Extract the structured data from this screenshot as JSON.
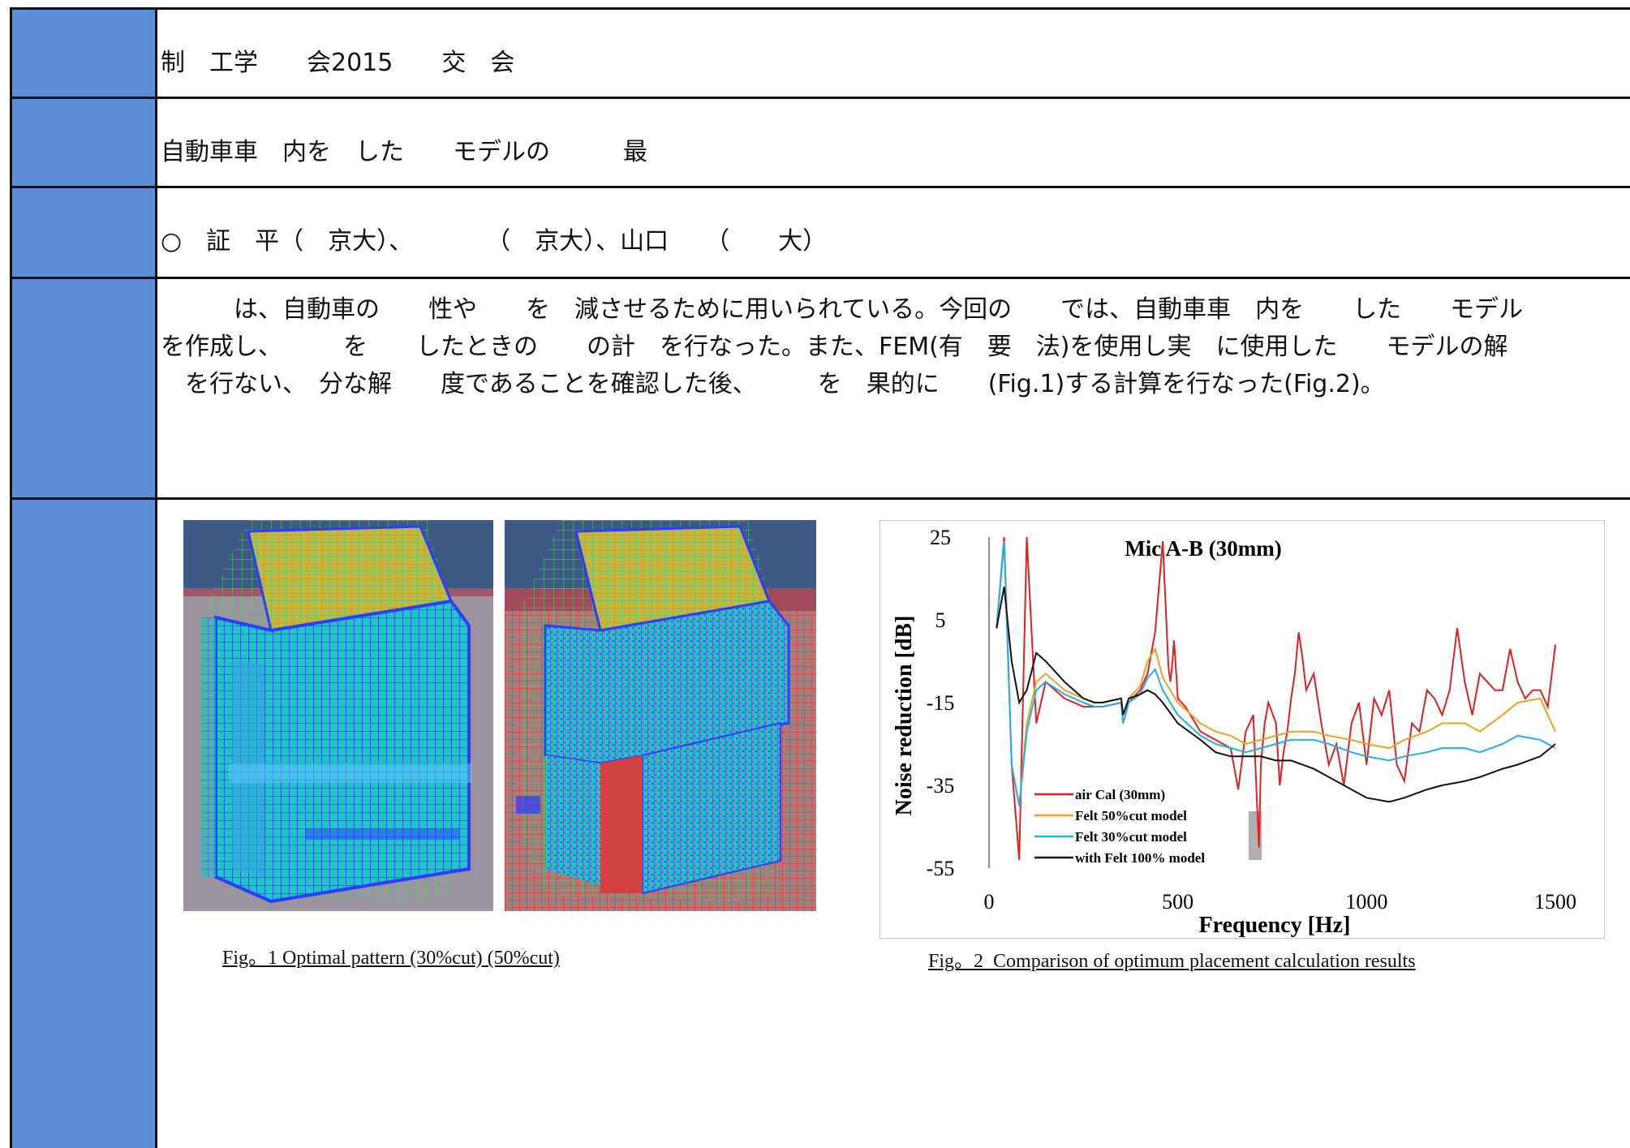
{
  "rows": {
    "conference": "制　工学　　会2015　　交　会",
    "title": "自動車車　内を　した　　モデルの　　　最",
    "authors": "○　証　平（　京大）、　　　　（　京大）、山口　　（　　大）",
    "abstract_lines": [
      "　　　は、自動車の　　性や　　を　減させるために用いられている。今回の　　では、自動車車　内を　　した　　モデル",
      "を作成し、　　　を　　したときの　　の計　を行なった。また、FEM(有　要　法)を使用し実　に使用した　　モデルの解",
      "　を行ない、　分な解　　度であることを確認した後、　　　を　果的に　　(Fig.1)する計算を行なった(Fig.2)。"
    ]
  },
  "fig1": {
    "caption": "Fig。1 Optimal pattern (30%cut) (50%cut)",
    "colors": {
      "sky": "#3d5a86",
      "floor": "#9a94a0",
      "mesh_blue": "#3a3cff",
      "cyan": "#19c9c9",
      "top": "#c8b43c",
      "red": "#ff2020"
    }
  },
  "fig2": {
    "caption": "Fig。2  Comparison of optimum placement calculation results"
  },
  "chart_data": {
    "type": "line",
    "title": "Mic A-B (30mm)",
    "xlabel": "Frequency [Hz]",
    "ylabel": "Noise reduction [dB]",
    "xlim": [
      0,
      1500
    ],
    "ylim": [
      -55,
      25
    ],
    "xticks": [
      0,
      500,
      1000,
      1500
    ],
    "yticks": [
      25,
      5,
      -15,
      -35,
      -55
    ],
    "grid": false,
    "legend_position": "bottom-left",
    "series": [
      {
        "name": "air Cal (30mm)",
        "color": "#e02020",
        "x": [
          20,
          40,
          60,
          80,
          100,
          125,
          150,
          200,
          250,
          280,
          300,
          350,
          355,
          370,
          400,
          420,
          440,
          460,
          475,
          480,
          485,
          490,
          500,
          520,
          560,
          600,
          640,
          660,
          680,
          700,
          710,
          715,
          720,
          730,
          740,
          760,
          770,
          780,
          790,
          800,
          810,
          820,
          830,
          840,
          860,
          880,
          900,
          920,
          940,
          960,
          980,
          1000,
          1020,
          1040,
          1060,
          1080,
          1100,
          1120,
          1140,
          1160,
          1180,
          1200,
          1220,
          1240,
          1260,
          1280,
          1300,
          1320,
          1340,
          1360,
          1380,
          1400,
          1420,
          1440,
          1460,
          1480,
          1500
        ],
        "y": [
          3,
          25,
          -30,
          -53,
          25,
          -20,
          -10,
          -14,
          -16,
          -16,
          -16,
          -15,
          -20,
          -15,
          -12,
          -8,
          2,
          24,
          -6,
          -10,
          -6,
          0,
          -14,
          -16,
          -22,
          -24,
          -26,
          -36,
          -22,
          -18,
          -40,
          -50,
          -30,
          -20,
          -15,
          -20,
          -35,
          -27,
          -22,
          -14,
          -8,
          2,
          -4,
          -12,
          -8,
          -20,
          -30,
          -25,
          -35,
          -20,
          -15,
          -30,
          -14,
          -18,
          -12,
          -30,
          -34,
          -20,
          -22,
          -12,
          -14,
          -18,
          -12,
          3,
          -10,
          -18,
          -8,
          -10,
          -12,
          -12,
          -2,
          -10,
          -14,
          -12,
          -12,
          -16,
          -1
        ]
      },
      {
        "name": "Felt 50%cut model",
        "color": "#f0a020",
        "x": [
          20,
          40,
          60,
          80,
          100,
          125,
          150,
          200,
          250,
          280,
          300,
          350,
          355,
          370,
          400,
          420,
          440,
          460,
          500,
          560,
          600,
          640,
          680,
          720,
          760,
          800,
          860,
          900,
          960,
          1000,
          1060,
          1100,
          1160,
          1200,
          1260,
          1300,
          1360,
          1400,
          1460,
          1500
        ],
        "y": [
          3,
          24,
          -30,
          -40,
          -20,
          -10,
          -8,
          -12,
          -14,
          -15,
          -15,
          -14,
          -18,
          -14,
          -11,
          -5,
          -2,
          -9,
          -15,
          -20,
          -22,
          -23,
          -25,
          -24,
          -23,
          -22,
          -22,
          -23,
          -24,
          -25,
          -26,
          -24,
          -22,
          -20,
          -20,
          -22,
          -18,
          -15,
          -14,
          -22
        ]
      },
      {
        "name": "Felt 30%cut model",
        "color": "#20b0e8",
        "x": [
          20,
          40,
          60,
          80,
          100,
          125,
          150,
          200,
          250,
          280,
          300,
          350,
          355,
          370,
          400,
          420,
          440,
          460,
          500,
          560,
          600,
          640,
          680,
          720,
          760,
          800,
          860,
          900,
          960,
          1000,
          1060,
          1100,
          1160,
          1200,
          1260,
          1300,
          1360,
          1400,
          1460,
          1500
        ],
        "y": [
          3,
          24,
          -30,
          -40,
          -22,
          -12,
          -10,
          -13,
          -15,
          -16,
          -16,
          -15,
          -20,
          -15,
          -13,
          -9,
          -7,
          -12,
          -18,
          -23,
          -25,
          -26,
          -27,
          -26,
          -25,
          -24,
          -24,
          -25,
          -27,
          -28,
          -29,
          -28,
          -27,
          -26,
          -26,
          -27,
          -25,
          -23,
          -24,
          -26
        ]
      },
      {
        "name": "with Felt 100% model",
        "color": "#111111",
        "x": [
          20,
          40,
          60,
          80,
          100,
          125,
          150,
          200,
          250,
          280,
          300,
          350,
          355,
          370,
          400,
          420,
          440,
          460,
          500,
          560,
          600,
          640,
          680,
          720,
          760,
          800,
          860,
          900,
          960,
          1000,
          1060,
          1100,
          1160,
          1200,
          1260,
          1300,
          1360,
          1400,
          1460,
          1500
        ],
        "y": [
          3,
          13,
          -5,
          -15,
          -12,
          -3,
          -5,
          -10,
          -14,
          -15,
          -15,
          -14,
          -18,
          -14,
          -13,
          -12,
          -13,
          -15,
          -20,
          -24,
          -27,
          -28,
          -28,
          -28,
          -29,
          -29,
          -31,
          -33,
          -36,
          -38,
          -39,
          -38,
          -36,
          -35,
          -34,
          -33,
          -31,
          -30,
          -28,
          -25
        ]
      }
    ]
  }
}
